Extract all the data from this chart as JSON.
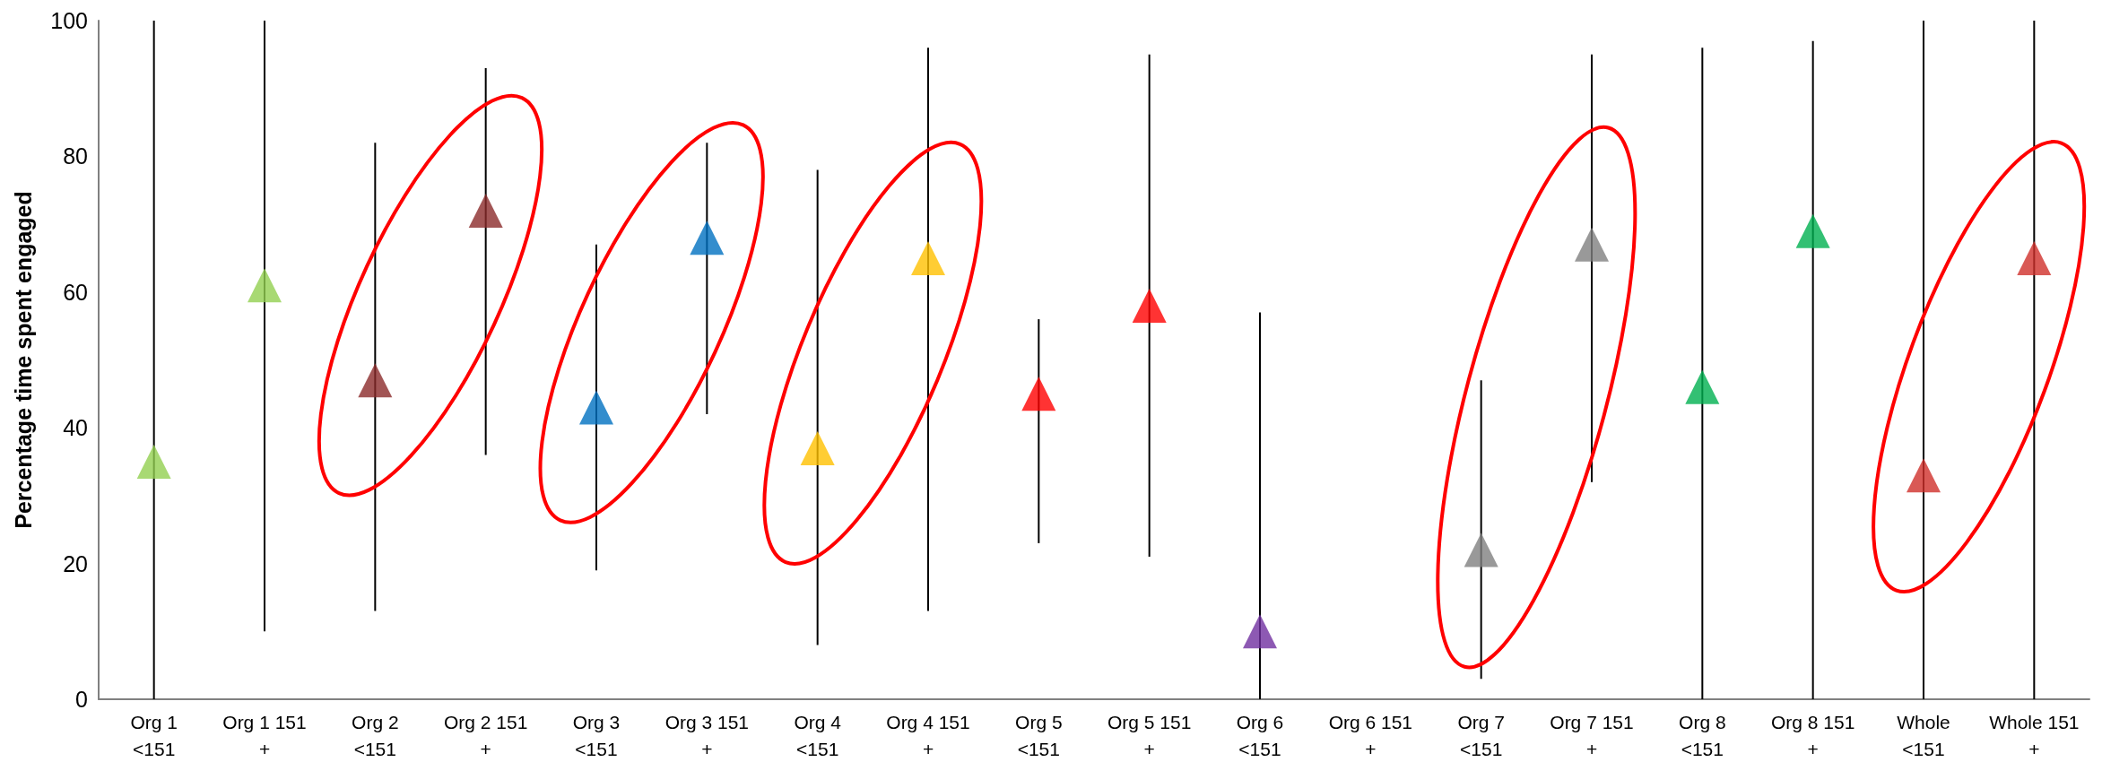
{
  "chart_data": {
    "type": "scatter",
    "ylabel": "Percentage time spent engaged",
    "categories": [
      "Org 1 <151",
      "Org 1 151 +",
      "Org 2 <151",
      "Org 2 151 +",
      "Org 3 <151",
      "Org 3 151 +",
      "Org 4 <151",
      "Org 4 151 +",
      "Org 5 <151",
      "Org 5 151 +",
      "Org 6 <151",
      "Org 6 151 +",
      "Org 7 <151",
      "Org 7 151 +",
      "Org 8 <151",
      "Org 8 151 +",
      "Whole <151",
      "Whole 151 +"
    ],
    "values": [
      35,
      61,
      47,
      72,
      43,
      68,
      37,
      65,
      45,
      58,
      10,
      null,
      22,
      67,
      46,
      69,
      33,
      65
    ],
    "colors": [
      "#92d050",
      "#92d050",
      "#8b2b2b",
      "#8b2b2b",
      "#0070c0",
      "#0070c0",
      "#ffc000",
      "#ffc000",
      "#ff0000",
      "#ff0000",
      "#7030a0",
      "#7030a0",
      "#808080",
      "#808080",
      "#00b050",
      "#00b050",
      "#d0302a",
      "#d0302a"
    ],
    "errors": [
      [
        0,
        100
      ],
      [
        10,
        100
      ],
      [
        13,
        82
      ],
      [
        36,
        93
      ],
      [
        19,
        67
      ],
      [
        42,
        82
      ],
      [
        8,
        78
      ],
      [
        13,
        96
      ],
      [
        23,
        56
      ],
      [
        21,
        95
      ],
      [
        0,
        57
      ],
      null,
      [
        3,
        47
      ],
      [
        32,
        95
      ],
      [
        0,
        96
      ],
      [
        0,
        97
      ],
      [
        0,
        100
      ],
      [
        0,
        100
      ]
    ],
    "ylim": [
      0,
      100
    ],
    "yticks": [
      0,
      20,
      40,
      60,
      80,
      100
    ],
    "grid": false,
    "marker": "triangle"
  }
}
